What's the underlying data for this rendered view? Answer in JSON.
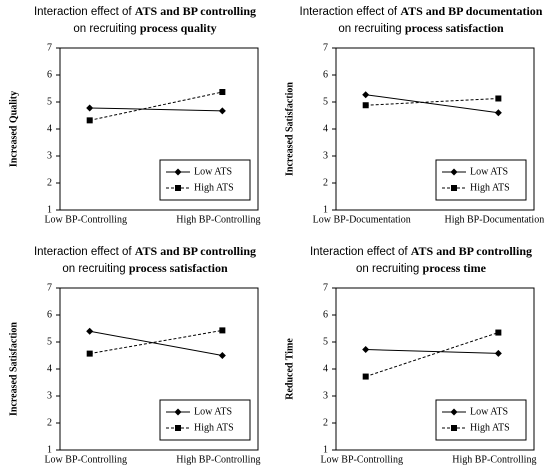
{
  "chart_data": [
    {
      "type": "line",
      "title_runs": [
        [
          {
            "text": "Interaction effect of ",
            "bold": false
          },
          {
            "text": "ATS and BP controlling",
            "bold": true
          }
        ],
        [
          {
            "text": "on recruiting ",
            "bold": false
          },
          {
            "text": "process quality",
            "bold": true
          }
        ]
      ],
      "y_label": "Increased Quality",
      "categories": [
        "Low BP-Controlling",
        "High BP-Controlling"
      ],
      "series": [
        {
          "name": "Low ATS",
          "color": "#000000",
          "line_style": "solid",
          "marker": "diamond",
          "values": [
            4.78,
            4.67
          ]
        },
        {
          "name": "High ATS",
          "color": "#000000",
          "line_style": "dashed",
          "marker": "square",
          "values": [
            4.32,
            5.37
          ]
        }
      ],
      "ylim": [
        1,
        7
      ],
      "yticks": [
        1,
        2,
        3,
        4,
        5,
        6,
        7
      ],
      "grid": false,
      "legend": "lower right"
    },
    {
      "type": "line",
      "title_runs": [
        [
          {
            "text": "Interaction effect of ",
            "bold": false
          },
          {
            "text": "ATS and BP documentation",
            "bold": true
          }
        ],
        [
          {
            "text": "on recruiting ",
            "bold": false
          },
          {
            "text": "process satisfaction",
            "bold": true
          }
        ]
      ],
      "y_label": "Increased Satisfaction",
      "categories": [
        "Low BP-Documentation",
        "High BP-Documentation"
      ],
      "series": [
        {
          "name": "Low ATS",
          "color": "#000000",
          "line_style": "solid",
          "marker": "diamond",
          "values": [
            5.27,
            4.6
          ]
        },
        {
          "name": "High ATS",
          "color": "#000000",
          "line_style": "dashed",
          "marker": "square",
          "values": [
            4.88,
            5.13
          ]
        }
      ],
      "ylim": [
        1,
        7
      ],
      "yticks": [
        1,
        2,
        3,
        4,
        5,
        6,
        7
      ],
      "grid": false,
      "legend": "lower right"
    },
    {
      "type": "line",
      "title_runs": [
        [
          {
            "text": "Interaction effect of ",
            "bold": false
          },
          {
            "text": "ATS and BP controlling",
            "bold": true
          }
        ],
        [
          {
            "text": "on recruiting ",
            "bold": false
          },
          {
            "text": "process satisfaction",
            "bold": true
          }
        ]
      ],
      "y_label": "Increased Satisfaction",
      "categories": [
        "Low BP-Controlling",
        "High BP-Controlling"
      ],
      "series": [
        {
          "name": "Low ATS",
          "color": "#000000",
          "line_style": "solid",
          "marker": "diamond",
          "values": [
            5.4,
            4.5
          ]
        },
        {
          "name": "High ATS",
          "color": "#000000",
          "line_style": "dashed",
          "marker": "square",
          "values": [
            4.57,
            5.43
          ]
        }
      ],
      "ylim": [
        1,
        7
      ],
      "yticks": [
        1,
        2,
        3,
        4,
        5,
        6,
        7
      ],
      "grid": false,
      "legend": "lower right"
    },
    {
      "type": "line",
      "title_runs": [
        [
          {
            "text": "Interaction effect of ",
            "bold": false
          },
          {
            "text": "ATS and BP controlling",
            "bold": true
          }
        ],
        [
          {
            "text": "on recruiting ",
            "bold": false
          },
          {
            "text": "process time",
            "bold": true
          }
        ]
      ],
      "y_label": "Reduced Time",
      "categories": [
        "Low BP-Controlling",
        "High BP-Controlling"
      ],
      "series": [
        {
          "name": "Low ATS",
          "color": "#000000",
          "line_style": "solid",
          "marker": "diamond",
          "values": [
            4.72,
            4.58
          ]
        },
        {
          "name": "High ATS",
          "color": "#000000",
          "line_style": "dashed",
          "marker": "square",
          "values": [
            3.72,
            5.35
          ]
        }
      ],
      "ylim": [
        1,
        7
      ],
      "yticks": [
        1,
        2,
        3,
        4,
        5,
        6,
        7
      ],
      "grid": false,
      "legend": "lower right"
    }
  ]
}
